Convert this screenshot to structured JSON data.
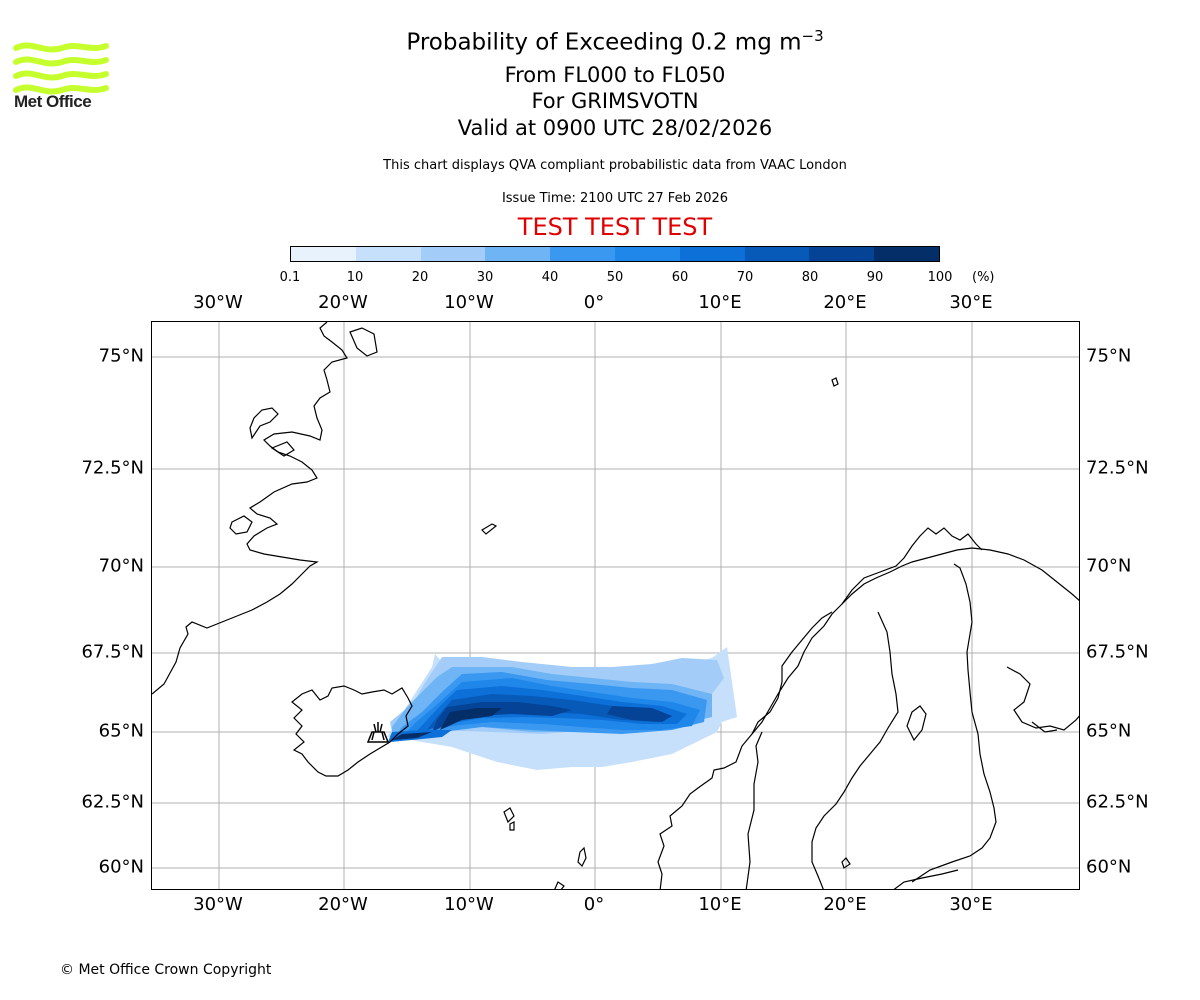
{
  "header": {
    "title_main": "Probability of Exceeding 0.2 mg m",
    "title_sup": "−3",
    "flight_levels": "From FL000 to FL050",
    "volcano": "For GRIMSVOTN",
    "valid": "Valid at 0900 UTC 28/02/2026",
    "description": "This chart displays QVA compliant probabilistic data from VAAC London",
    "issue_time": "Issue Time: 2100 UTC 27 Feb 2026",
    "test_banner": "TEST TEST TEST"
  },
  "logo": {
    "text": "Met Office",
    "color": "#c6ff2e"
  },
  "colorbar": {
    "ticks": [
      "0.1",
      "10",
      "20",
      "30",
      "40",
      "50",
      "60",
      "70",
      "80",
      "90",
      "100"
    ],
    "unit": "(%)",
    "colors": [
      "#e8f2fd",
      "#c6e0fb",
      "#a3cdf8",
      "#6fb4f5",
      "#3a98f0",
      "#1f86ea",
      "#0d6fd8",
      "#075ab8",
      "#044395",
      "#032e68"
    ]
  },
  "map": {
    "lon_labels": [
      "30°W",
      "20°W",
      "10°W",
      "0°",
      "10°E",
      "20°E",
      "30°E"
    ],
    "lat_labels": [
      "75°N",
      "72.5°N",
      "70°N",
      "67.5°N",
      "65°N",
      "62.5°N",
      "60°N"
    ],
    "volcano_symbol": "volcano-icon"
  },
  "footer": {
    "copyright": "© Met Office Crown Copyright"
  }
}
